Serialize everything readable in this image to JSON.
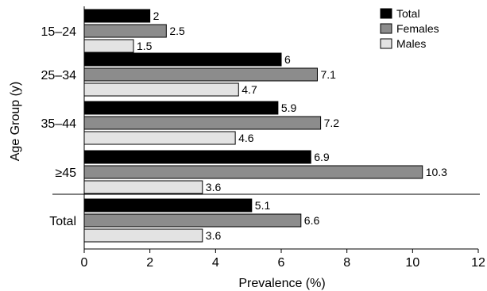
{
  "chart_data": {
    "type": "bar",
    "orientation": "horizontal",
    "title": "",
    "xlabel": "Prevalence (%)",
    "ylabel": "Age Group (y)",
    "xlim": [
      0,
      12
    ],
    "xticks": [
      "0",
      "2",
      "4",
      "6",
      "8",
      "10",
      "12"
    ],
    "categories": [
      "15–24",
      "25–34",
      "35–44",
      "≥45",
      "Total"
    ],
    "series": [
      {
        "name": "Total",
        "color": "#000000",
        "values": [
          2,
          6,
          5.9,
          6.9,
          5.1
        ],
        "labels": [
          "2",
          "6",
          "5.9",
          "6.9",
          "5.1"
        ]
      },
      {
        "name": "Females",
        "color": "#8c8c8c",
        "values": [
          2.5,
          7.1,
          7.2,
          10.3,
          6.6
        ],
        "labels": [
          "2.5",
          "7.1",
          "7.2",
          "10.3",
          "6.6"
        ]
      },
      {
        "name": "Males",
        "color": "#e3e3e3",
        "values": [
          1.5,
          4.7,
          4.6,
          3.6,
          3.6
        ],
        "labels": [
          "1.5",
          "4.7",
          "4.6",
          "3.6",
          "3.6"
        ]
      }
    ],
    "legend": "top-right",
    "grid": false
  }
}
